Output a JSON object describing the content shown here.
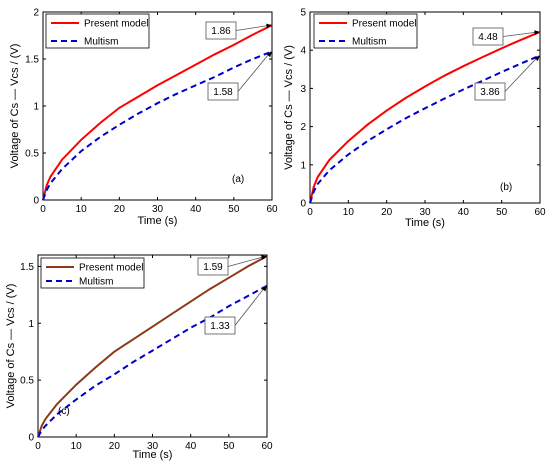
{
  "chart_data": [
    {
      "type": "line",
      "panel_label": "(a)",
      "xlabel": "Time (s)",
      "ylabel": "Voltage of Cs — Vcs / (V)",
      "xlim": [
        0,
        60
      ],
      "ylim": [
        0,
        2
      ],
      "xticks": [
        "0",
        "10",
        "20",
        "30",
        "40",
        "50",
        "60"
      ],
      "yticks": [
        "0",
        "0.5",
        "1",
        "1.5",
        "2"
      ],
      "grid": false,
      "legend_position": "top-left",
      "x": [
        0,
        1,
        2,
        5,
        10,
        15,
        20,
        25,
        30,
        35,
        40,
        45,
        50,
        55,
        60
      ],
      "series": [
        {
          "name": "Present model",
          "color": "#ff0000",
          "dash": "solid",
          "values": [
            0,
            0.16,
            0.25,
            0.43,
            0.64,
            0.82,
            0.98,
            1.1,
            1.22,
            1.33,
            1.44,
            1.55,
            1.65,
            1.76,
            1.86
          ]
        },
        {
          "name": "Multism",
          "color": "#0000cc",
          "dash": "dashed",
          "values": [
            0,
            0.11,
            0.18,
            0.33,
            0.52,
            0.67,
            0.8,
            0.92,
            1.03,
            1.13,
            1.22,
            1.31,
            1.41,
            1.5,
            1.58
          ]
        }
      ],
      "annotations": [
        {
          "text": "1.86",
          "series": 0
        },
        {
          "text": "1.58",
          "series": 1
        }
      ]
    },
    {
      "type": "line",
      "panel_label": "(b)",
      "xlabel": "Time (s)",
      "ylabel": "Voltage of Cs — Vcs / (V)",
      "xlim": [
        0,
        60
      ],
      "ylim": [
        0,
        5
      ],
      "xticks": [
        "0",
        "10",
        "20",
        "30",
        "40",
        "50",
        "60"
      ],
      "yticks": [
        "0",
        "1",
        "2",
        "3",
        "4",
        "5"
      ],
      "grid": false,
      "legend_position": "top-left",
      "x": [
        0,
        1,
        2,
        5,
        10,
        15,
        20,
        25,
        30,
        35,
        40,
        45,
        50,
        55,
        60
      ],
      "series": [
        {
          "name": "Present model",
          "color": "#ff0000",
          "dash": "solid",
          "values": [
            0,
            0.43,
            0.68,
            1.12,
            1.62,
            2.05,
            2.42,
            2.75,
            3.05,
            3.33,
            3.58,
            3.82,
            4.05,
            4.27,
            4.48
          ]
        },
        {
          "name": "Multism",
          "color": "#0000cc",
          "dash": "dashed",
          "values": [
            0,
            0.3,
            0.5,
            0.85,
            1.27,
            1.62,
            1.93,
            2.22,
            2.48,
            2.73,
            2.97,
            3.2,
            3.43,
            3.65,
            3.86
          ]
        }
      ],
      "annotations": [
        {
          "text": "4.48",
          "series": 0
        },
        {
          "text": "3.86",
          "series": 1
        }
      ]
    },
    {
      "type": "line",
      "panel_label": "(c)",
      "xlabel": "Time (s)",
      "ylabel": "Voltage of Cs — Vcs / (V)",
      "xlim": [
        0,
        60
      ],
      "ylim": [
        0,
        1.6
      ],
      "xticks": [
        "0",
        "10",
        "20",
        "30",
        "40",
        "50",
        "60"
      ],
      "yticks": [
        "0",
        "0.5",
        "1",
        "1.5"
      ],
      "grid": false,
      "legend_position": "top-left",
      "x": [
        0,
        1,
        2,
        5,
        10,
        15,
        20,
        25,
        30,
        35,
        40,
        45,
        50,
        55,
        60
      ],
      "series": [
        {
          "name": "Present model",
          "color": "#8b3a1a",
          "dash": "solid",
          "values": [
            0,
            0.1,
            0.16,
            0.29,
            0.46,
            0.61,
            0.75,
            0.86,
            0.97,
            1.08,
            1.19,
            1.3,
            1.4,
            1.5,
            1.59
          ]
        },
        {
          "name": "Multism",
          "color": "#0000cc",
          "dash": "dashed",
          "values": [
            0,
            0.06,
            0.1,
            0.2,
            0.33,
            0.45,
            0.55,
            0.66,
            0.76,
            0.86,
            0.96,
            1.05,
            1.15,
            1.24,
            1.33
          ]
        }
      ],
      "annotations": [
        {
          "text": "1.59",
          "series": 0
        },
        {
          "text": "1.33",
          "series": 1
        }
      ]
    }
  ]
}
